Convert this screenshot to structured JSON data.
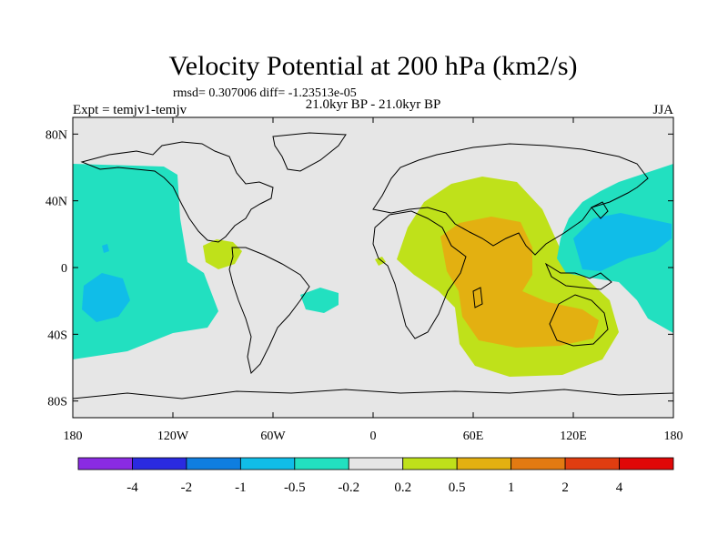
{
  "title": "Velocity Potential at 200 hPa (km2/s)",
  "stats_line": "rmsd= 0.307006 diff= -1.23513e-05",
  "left_label": "Expt = temjv1-temjv",
  "center_label": "21.0kyr BP - 21.0kyr BP",
  "right_label": "JJA",
  "map": {
    "background_color": "#e6e6e6",
    "lon_range": [
      -180,
      180
    ],
    "lat_range": [
      -90,
      90
    ],
    "x_ticks": [
      {
        "value": -180,
        "label": "180"
      },
      {
        "value": -120,
        "label": "120W"
      },
      {
        "value": -60,
        "label": "60W"
      },
      {
        "value": 0,
        "label": "0"
      },
      {
        "value": 60,
        "label": "60E"
      },
      {
        "value": 120,
        "label": "120E"
      },
      {
        "value": 180,
        "label": "180"
      }
    ],
    "y_ticks": [
      {
        "value": 80,
        "label": "80N"
      },
      {
        "value": 40,
        "label": "40N"
      },
      {
        "value": 0,
        "label": "0"
      },
      {
        "value": -40,
        "label": "40S"
      },
      {
        "value": -80,
        "label": "80S"
      }
    ]
  },
  "colorbar": {
    "colors": [
      "#8a2be2",
      "#2a2ae0",
      "#0f7ee0",
      "#10bde8",
      "#22e0c0",
      "#e6e6e6",
      "#bfe11a",
      "#e3b011",
      "#e27a12",
      "#e03d10",
      "#e00808"
    ],
    "labels": [
      "-4",
      "-2",
      "-1",
      "-0.5",
      "-0.2",
      "0.2",
      "0.5",
      "1",
      "2",
      "4"
    ]
  }
}
